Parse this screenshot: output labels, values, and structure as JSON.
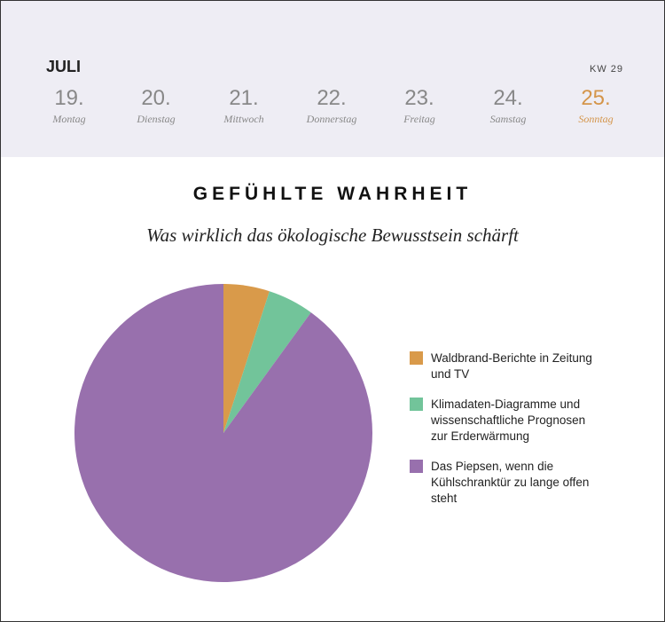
{
  "header": {
    "month": "JULI",
    "week": "KW 29",
    "days": [
      {
        "number": "19.",
        "weekday": "Montag"
      },
      {
        "number": "20.",
        "weekday": "Dienstag"
      },
      {
        "number": "21.",
        "weekday": "Mittwoch"
      },
      {
        "number": "22.",
        "weekday": "Donnerstag"
      },
      {
        "number": "23.",
        "weekday": "Freitag"
      },
      {
        "number": "24.",
        "weekday": "Samstag"
      },
      {
        "number": "25.",
        "weekday": "Sonntag"
      }
    ]
  },
  "chart_data": {
    "type": "pie",
    "title": "GEFÜHLTE WAHRHEIT",
    "subtitle": "Was wirklich das ökologische Bewusstsein schärft",
    "categories": [
      "Waldbrand-Berichte in Zeitung und TV",
      "Klimadaten-Diagramme und wissenschaftliche Prognosen zur Erderwärmung",
      "Das Piepsen, wenn die Kühlschranktür zu lange offen steht"
    ],
    "values": [
      5,
      5,
      90
    ],
    "colors": [
      "#d99a4a",
      "#72c49a",
      "#9870ad"
    ],
    "legend": "right"
  }
}
